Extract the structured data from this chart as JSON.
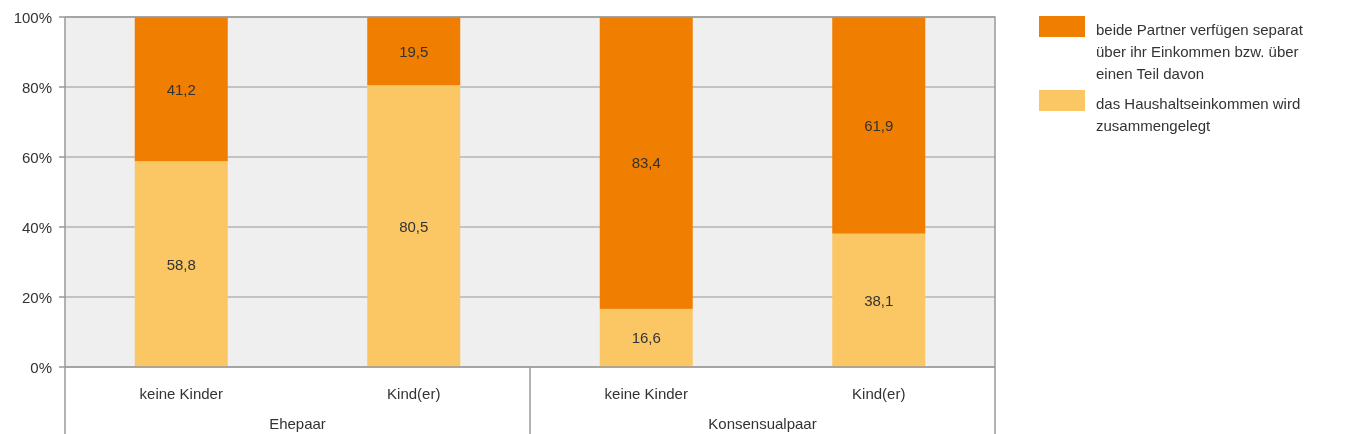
{
  "chart_data": {
    "type": "bar",
    "stacked": true,
    "categories": [
      "keine Kinder",
      "Kind(er)",
      "keine Kinder",
      "Kind(er)"
    ],
    "series": [
      {
        "name": "das Haushaltseinkommen wird zusammengelegt",
        "color": "#fbc664",
        "values": [
          58.8,
          80.5,
          16.6,
          38.1
        ],
        "value_labels": [
          "58,8",
          "80,5",
          "16,6",
          "38,1"
        ]
      },
      {
        "name": "beide Partner verfügen separat über ihr Einkommen bzw. über einen Teil davon",
        "color": "#f07e00",
        "values": [
          41.2,
          19.5,
          83.4,
          61.9
        ],
        "value_labels": [
          "41,2",
          "19,5",
          "83,4",
          "61,9"
        ]
      }
    ],
    "ylim": [
      0,
      100
    ],
    "yticks": [
      {
        "value": 0,
        "label": "0%"
      },
      {
        "value": 20,
        "label": "20%"
      },
      {
        "value": 40,
        "label": "40%"
      },
      {
        "value": 60,
        "label": "60%"
      },
      {
        "value": 80,
        "label": "80%"
      },
      {
        "value": 100,
        "label": "100%"
      }
    ],
    "annotations": [
      "Ehepaar",
      "Konsensualpaar"
    ],
    "grid": "y",
    "legend": "right"
  }
}
